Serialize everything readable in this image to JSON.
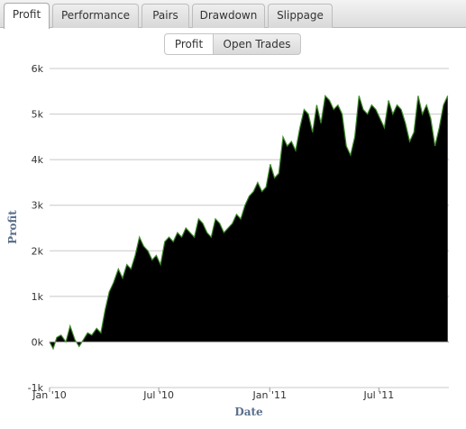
{
  "tabs": [
    {
      "label": "Profit",
      "active": true
    },
    {
      "label": "Performance",
      "active": false
    },
    {
      "label": "Pairs",
      "active": false
    },
    {
      "label": "Drawdown",
      "active": false
    },
    {
      "label": "Slippage",
      "active": false
    }
  ],
  "subtabs": [
    {
      "label": "Profit",
      "active": true
    },
    {
      "label": "Open Trades",
      "active": false
    }
  ],
  "chart_data": {
    "type": "area",
    "title": "",
    "xlabel": "Date",
    "ylabel": "Profit",
    "ylim": [
      -1000,
      6000
    ],
    "xlim": [
      "2010-01-01",
      "2011-10-25"
    ],
    "yticks": [
      {
        "value": -1000,
        "label": "-1k"
      },
      {
        "value": 0,
        "label": "0k"
      },
      {
        "value": 1000,
        "label": "1k"
      },
      {
        "value": 2000,
        "label": "2k"
      },
      {
        "value": 3000,
        "label": "3k"
      },
      {
        "value": 4000,
        "label": "4k"
      },
      {
        "value": 5000,
        "label": "5k"
      },
      {
        "value": 6000,
        "label": "6k"
      }
    ],
    "xticks": [
      {
        "value": "2010-01-01",
        "label": "Jan '10"
      },
      {
        "value": "2010-07-01",
        "label": "Jul '10"
      },
      {
        "value": "2011-01-01",
        "label": "Jan '11"
      },
      {
        "value": "2011-07-01",
        "label": "Jul '11"
      }
    ],
    "grid": true,
    "fill_color": "#000000",
    "line_color": "#3c8a28",
    "series": [
      {
        "x": [
          "2010-01-01",
          "2010-01-07",
          "2010-01-13",
          "2010-01-20",
          "2010-01-28",
          "2010-02-04",
          "2010-02-12",
          "2010-02-19",
          "2010-02-26",
          "2010-03-05",
          "2010-03-12",
          "2010-03-20",
          "2010-03-27",
          "2010-04-03",
          "2010-04-10",
          "2010-04-17",
          "2010-04-25",
          "2010-05-02",
          "2010-05-09",
          "2010-05-16",
          "2010-05-23",
          "2010-05-30",
          "2010-06-06",
          "2010-06-13",
          "2010-06-20",
          "2010-06-27",
          "2010-07-04",
          "2010-07-11",
          "2010-07-18",
          "2010-07-25",
          "2010-08-01",
          "2010-08-08",
          "2010-08-15",
          "2010-08-22",
          "2010-08-29",
          "2010-09-05",
          "2010-09-12",
          "2010-09-19",
          "2010-09-26",
          "2010-10-03",
          "2010-10-10",
          "2010-10-17",
          "2010-10-24",
          "2010-10-31",
          "2010-11-07",
          "2010-11-14",
          "2010-11-21",
          "2010-11-28",
          "2010-12-05",
          "2010-12-12",
          "2010-12-19",
          "2010-12-26",
          "2011-01-02",
          "2011-01-09",
          "2011-01-16",
          "2011-01-23",
          "2011-01-30",
          "2011-02-06",
          "2011-02-13",
          "2011-02-20",
          "2011-02-27",
          "2011-03-06",
          "2011-03-13",
          "2011-03-20",
          "2011-03-27",
          "2011-04-03",
          "2011-04-10",
          "2011-04-17",
          "2011-04-24",
          "2011-05-01",
          "2011-05-08",
          "2011-05-15",
          "2011-05-22",
          "2011-05-29",
          "2011-06-05",
          "2011-06-12",
          "2011-06-19",
          "2011-06-26",
          "2011-07-03",
          "2011-07-10",
          "2011-07-17",
          "2011-07-24",
          "2011-07-31",
          "2011-08-07",
          "2011-08-14",
          "2011-08-21",
          "2011-08-28",
          "2011-09-04",
          "2011-09-11",
          "2011-09-18",
          "2011-09-25",
          "2011-10-02",
          "2011-10-09",
          "2011-10-16",
          "2011-10-23"
        ],
        "y": [
          0,
          -150,
          100,
          150,
          0,
          350,
          50,
          -100,
          50,
          200,
          150,
          300,
          200,
          700,
          1100,
          1300,
          1600,
          1400,
          1700,
          1600,
          1900,
          2300,
          2100,
          2000,
          1800,
          1900,
          1700,
          2200,
          2300,
          2200,
          2400,
          2300,
          2500,
          2400,
          2300,
          2700,
          2600,
          2400,
          2300,
          2700,
          2600,
          2400,
          2500,
          2600,
          2800,
          2700,
          3000,
          3200,
          3300,
          3500,
          3300,
          3400,
          3900,
          3600,
          3700,
          4500,
          4300,
          4400,
          4200,
          4700,
          5100,
          5000,
          4600,
          5200,
          4800,
          5400,
          5300,
          5100,
          5200,
          5000,
          4300,
          4100,
          4500,
          5400,
          5100,
          5000,
          5200,
          5100,
          4900,
          4700,
          5300,
          5000,
          5200,
          5100,
          4800,
          4400,
          4600,
          5400,
          5000,
          5200,
          4900,
          4300,
          4700,
          5200,
          5400
        ]
      }
    ]
  }
}
